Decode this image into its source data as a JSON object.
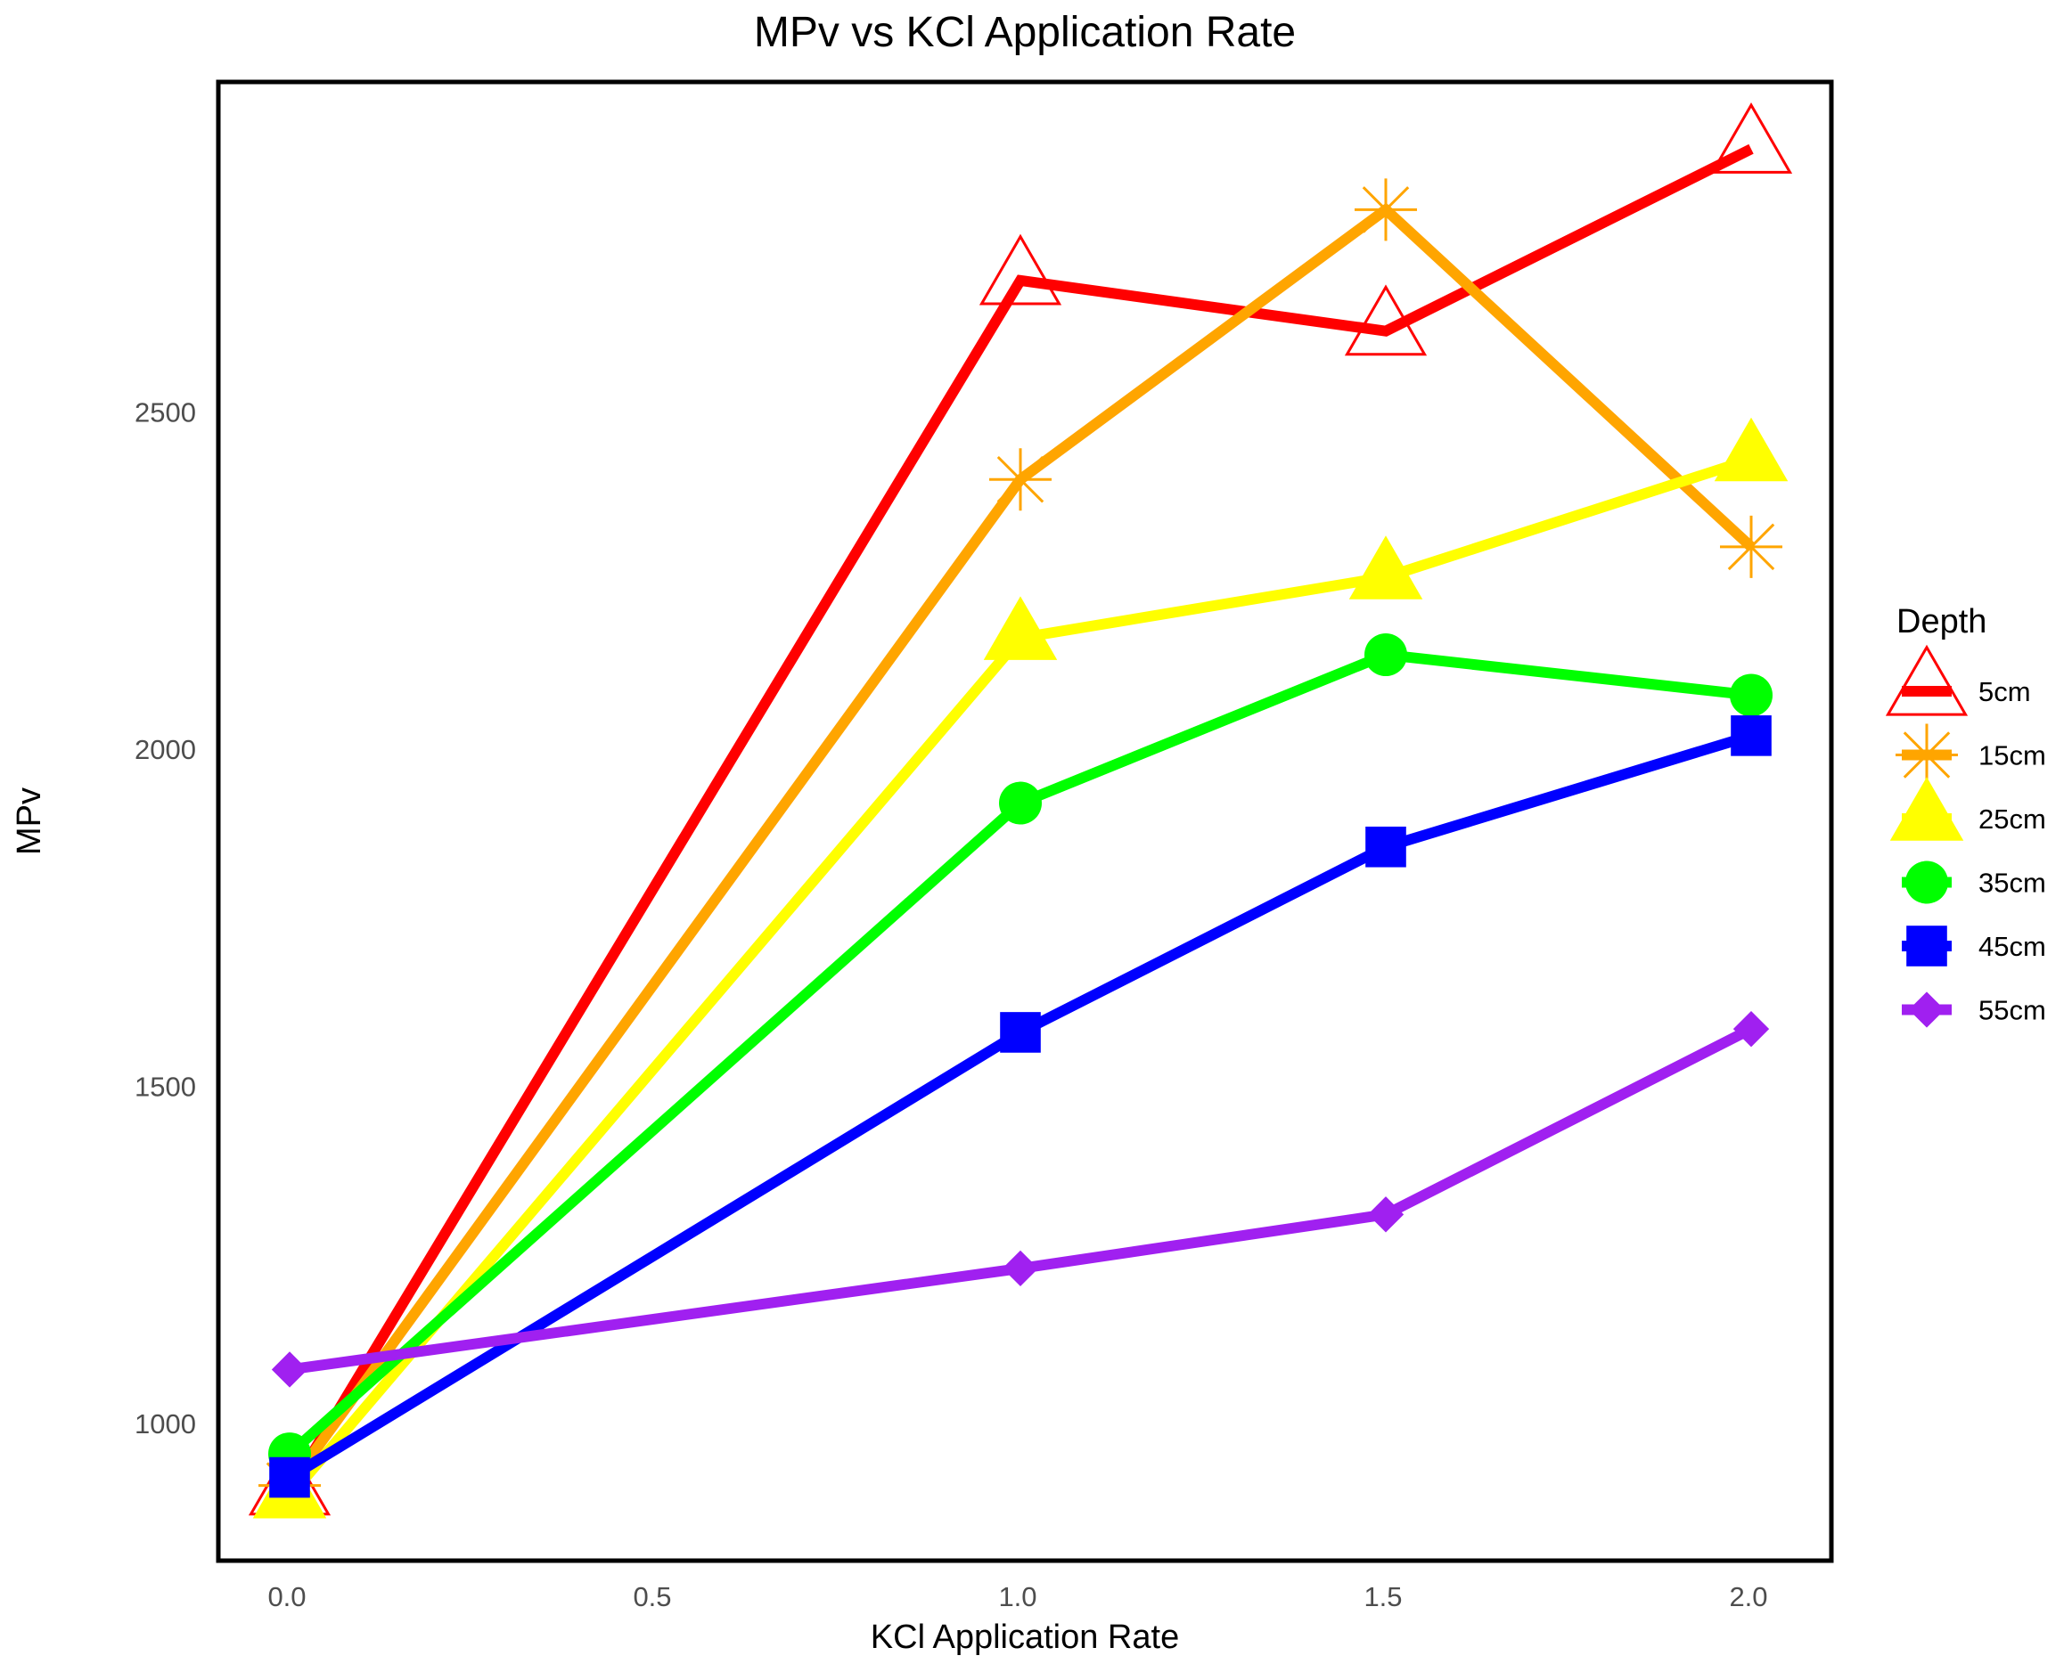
{
  "chart_data": {
    "type": "line",
    "title": "MPv vs KCl Application Rate",
    "xlabel": "KCl Application Rate",
    "ylabel": "MPv",
    "x": [
      0,
      1.0,
      1.5,
      2.0
    ],
    "xticks": [
      "0.0",
      "0.5",
      "1.0",
      "1.5",
      "2.0"
    ],
    "yticks": [
      "1000",
      "1500",
      "2000",
      "2500"
    ],
    "xlim": [
      -0.1,
      2.11
    ],
    "ylim": [
      797,
      2990
    ],
    "grid": false,
    "legend_title": "Depth",
    "legend_position": "right",
    "series": [
      {
        "name": "5cm",
        "color": "#ff0000",
        "marker": "open-triangle",
        "values": [
          900,
          2695,
          2620,
          2890
        ]
      },
      {
        "name": "15cm",
        "color": "#ffa500",
        "marker": "asterisk",
        "values": [
          908,
          2400,
          2800,
          2300
        ]
      },
      {
        "name": "25cm",
        "color": "#ffff00",
        "marker": "filled-triangle",
        "values": [
          892,
          2165,
          2255,
          2430
        ]
      },
      {
        "name": "35cm",
        "color": "#00ff00",
        "marker": "circle",
        "values": [
          955,
          1920,
          2140,
          2080
        ]
      },
      {
        "name": "45cm",
        "color": "#0000ff",
        "marker": "square",
        "values": [
          920,
          1580,
          1855,
          2020
        ]
      },
      {
        "name": "55cm",
        "color": "#a020f0",
        "marker": "diamond",
        "values": [
          1080,
          1230,
          1310,
          1585
        ]
      }
    ]
  }
}
